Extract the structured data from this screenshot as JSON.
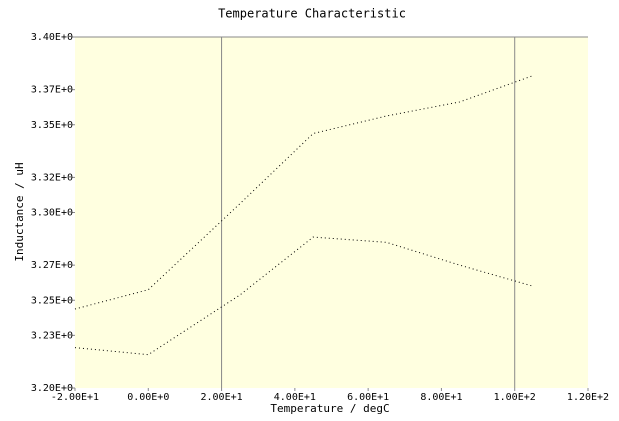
{
  "chart_data": {
    "type": "line",
    "title": "Temperature Characteristic",
    "x_label": "Temperature / degC",
    "y_label": "Inductance / uH",
    "x": [
      -20,
      0,
      25,
      45,
      65,
      85,
      105
    ],
    "series": [
      {
        "color": "#000000",
        "values": [
          3.245,
          3.256,
          3.305,
          3.345,
          3.355,
          3.363,
          3.378
        ]
      },
      {
        "color": "#000000",
        "values": [
          3.223,
          3.219,
          3.253,
          3.286,
          3.283,
          3.27,
          3.258
        ]
      }
    ],
    "xlim": [
      -20,
      120
    ],
    "ylim": [
      3.2,
      3.4
    ],
    "xticks": [
      {
        "value": -20,
        "label": "-2.00E+1"
      },
      {
        "value": 0,
        "label": "0.00E+0"
      },
      {
        "value": 20,
        "label": "2.00E+1"
      },
      {
        "value": 40,
        "label": "4.00E+1"
      },
      {
        "value": 60,
        "label": "6.00E+1"
      },
      {
        "value": 80,
        "label": "8.00E+1"
      },
      {
        "value": 100,
        "label": "1.00E+2"
      },
      {
        "value": 120,
        "label": "1.20E+2"
      }
    ],
    "yticks": [
      {
        "value": 3.4,
        "label": "3.40E+0"
      },
      {
        "value": 3.37,
        "label": "3.37E+0"
      },
      {
        "value": 3.35,
        "label": "3.35E+0"
      },
      {
        "value": 3.32,
        "label": "3.32E+0"
      },
      {
        "value": 3.3,
        "label": "3.30E+0"
      },
      {
        "value": 3.27,
        "label": "3.27E+0"
      },
      {
        "value": 3.25,
        "label": "3.25E+0"
      },
      {
        "value": 3.23,
        "label": "3.23E+0"
      },
      {
        "value": 3.2,
        "label": "3.20E+0"
      }
    ],
    "grid_x": [
      20,
      100
    ],
    "background": "#ffffe0"
  }
}
